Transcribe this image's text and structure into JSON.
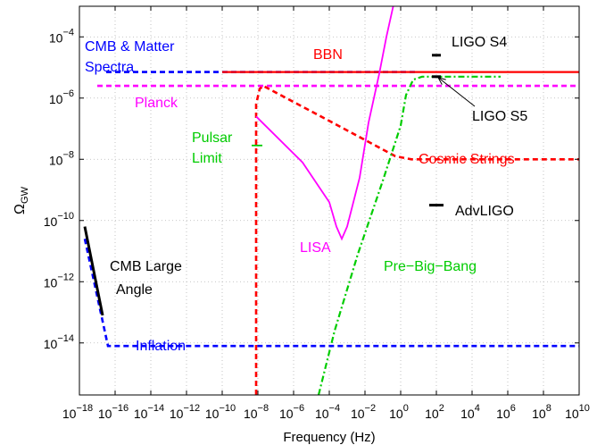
{
  "chart_data": {
    "type": "line",
    "xlabel": "Frequency (Hz)",
    "ylabel": "Ω",
    "ylabel_sub": "GW",
    "xscale": "log",
    "yscale": "log",
    "xlim_exp": [
      -18,
      10
    ],
    "ylim_exp": [
      -15.7,
      -3
    ],
    "grid": true,
    "x_tick_exponents": [
      -18,
      -16,
      -14,
      -12,
      -10,
      -8,
      -6,
      -4,
      -2,
      0,
      2,
      4,
      6,
      8,
      10
    ],
    "y_tick_exponents": [
      -4,
      -6,
      -8,
      -10,
      -12,
      -14
    ],
    "tick_base": "10",
    "series": [
      {
        "name": "CMB & Matter Spectra",
        "color": "#0000ff",
        "style": "dashed",
        "points": [
          [
            -16.5,
            -5.15
          ],
          [
            1,
            -5.15
          ]
        ]
      },
      {
        "name": "BBN",
        "color": "#ff0000",
        "style": "solid",
        "points": [
          [
            -10,
            -5.15
          ],
          [
            10,
            -5.15
          ]
        ]
      },
      {
        "name": "Planck",
        "color": "#ff00ff",
        "style": "dashed",
        "points": [
          [
            -17,
            -5.6
          ],
          [
            10,
            -5.6
          ]
        ]
      },
      {
        "name": "Pulsar Limit",
        "color": "#00cc00",
        "style": "solid",
        "points": [
          [
            -8.35,
            -7.55
          ],
          [
            -7.75,
            -7.55
          ]
        ]
      },
      {
        "name": "Cosmic Strings",
        "color": "#ff0000",
        "style": "dashed",
        "points": [
          [
            -8.1,
            -15.7
          ],
          [
            -8.1,
            -6.2
          ],
          [
            -7.9,
            -5.7
          ],
          [
            -7.7,
            -5.6
          ],
          [
            -3.5,
            -6.9
          ],
          [
            -0.3,
            -7.9
          ],
          [
            0.6,
            -8.0
          ],
          [
            10,
            -8.0
          ]
        ]
      },
      {
        "name": "LISA",
        "color": "#ff00ff",
        "style": "solid",
        "points": [
          [
            -8.1,
            -6.6
          ],
          [
            -5.5,
            -8.1
          ],
          [
            -4.0,
            -9.4
          ],
          [
            -3.6,
            -10.2
          ],
          [
            -3.3,
            -10.6
          ],
          [
            -3.0,
            -10.2
          ],
          [
            -2.3,
            -8.6
          ],
          [
            -1.8,
            -6.8
          ],
          [
            -1.2,
            -5.2
          ],
          [
            -0.8,
            -4.0
          ],
          [
            -0.4,
            -2.95
          ]
        ]
      },
      {
        "name": "Pre-Big-Bang",
        "color": "#00cc00",
        "style": "dashdot",
        "points": [
          [
            -4.6,
            -15.7
          ],
          [
            -3.7,
            -13.6
          ],
          [
            -2.4,
            -11.1
          ],
          [
            -1.0,
            -8.7
          ],
          [
            0.0,
            -6.9
          ],
          [
            0.3,
            -5.9
          ],
          [
            0.7,
            -5.4
          ],
          [
            1.2,
            -5.3
          ],
          [
            5.6,
            -5.3
          ]
        ]
      },
      {
        "name": "Inflation",
        "color": "#0000ff",
        "style": "dashed",
        "points": [
          [
            -17.7,
            -10.6
          ],
          [
            -16.4,
            -14.1
          ],
          [
            10,
            -14.1
          ]
        ]
      },
      {
        "name": "CMB Large Angle",
        "color": "#000000",
        "style": "solid",
        "points": [
          [
            -17.7,
            -10.2
          ],
          [
            -16.7,
            -13.1
          ]
        ]
      },
      {
        "name": "LIGO S4",
        "color": "#000000",
        "style": "solid",
        "points": [
          [
            1.75,
            -4.6
          ],
          [
            2.25,
            -4.6
          ]
        ]
      },
      {
        "name": "LIGO S5",
        "color": "#000000",
        "style": "solid",
        "points": [
          [
            1.75,
            -5.3
          ],
          [
            2.25,
            -5.3
          ]
        ]
      },
      {
        "name": "AdvLIGO",
        "color": "#000000",
        "style": "solid",
        "points": [
          [
            1.6,
            -9.5
          ],
          [
            2.4,
            -9.5
          ]
        ]
      }
    ],
    "annotations": [
      {
        "id": "cmb_matter_1",
        "text": "CMB & Matter",
        "color": "#0000ff"
      },
      {
        "id": "cmb_matter_2",
        "text": "Spectra",
        "color": "#0000ff"
      },
      {
        "id": "bbn",
        "text": "BBN",
        "color": "#ff0000"
      },
      {
        "id": "planck",
        "text": "Planck",
        "color": "#ff00ff"
      },
      {
        "id": "ligo_s4",
        "text": "LIGO S4",
        "color": "#000000"
      },
      {
        "id": "ligo_s5",
        "text": "LIGO S5",
        "color": "#000000"
      },
      {
        "id": "pulsar_1",
        "text": "Pulsar",
        "color": "#00cc00"
      },
      {
        "id": "pulsar_2",
        "text": "Limit",
        "color": "#00cc00"
      },
      {
        "id": "cosmic",
        "text": "Cosmic  Strings",
        "color": "#ff0000"
      },
      {
        "id": "advligo",
        "text": "AdvLIGO",
        "color": "#000000"
      },
      {
        "id": "lisa",
        "text": "LISA",
        "color": "#ff00ff"
      },
      {
        "id": "prebigbang",
        "text": "Pre−Big−Bang",
        "color": "#00cc00"
      },
      {
        "id": "cmb_large_1",
        "text": "CMB Large",
        "color": "#000000"
      },
      {
        "id": "cmb_large_2",
        "text": "Angle",
        "color": "#000000"
      },
      {
        "id": "inflation",
        "text": "Inflation",
        "color": "#0000ff"
      }
    ]
  }
}
